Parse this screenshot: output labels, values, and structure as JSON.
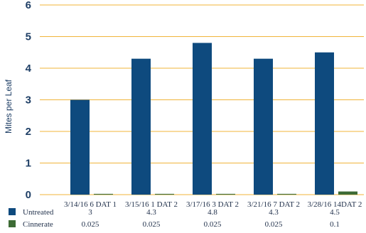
{
  "chart_data": {
    "type": "bar",
    "ylabel": "Mites per Leaf",
    "ylim": [
      0,
      6
    ],
    "yticks": [
      "0",
      "1",
      "2",
      "3",
      "4",
      "5",
      "6"
    ],
    "grid": true,
    "categories": [
      "3/14/16 6 DAT 1",
      "3/15/16 1 DAT 2",
      "3/17/16 3 DAT 2",
      "3/21/16 7 DAT 2",
      "3/28/16 14DAT 2"
    ],
    "series": [
      {
        "name": "Untreated",
        "color": "#0e4a7e",
        "values": [
          3,
          4.3,
          4.8,
          4.3,
          4.5
        ],
        "labels": [
          "3",
          "4.3",
          "4.8",
          "4.3",
          "4.5"
        ]
      },
      {
        "name": "Cinnerate",
        "color": "#3d6b35",
        "values": [
          0.025,
          0.025,
          0.025,
          0.025,
          0.1
        ],
        "labels": [
          "0.025",
          "0.025",
          "0.025",
          "0.025",
          "0.1"
        ]
      }
    ],
    "legend": "bottom-left data table"
  }
}
